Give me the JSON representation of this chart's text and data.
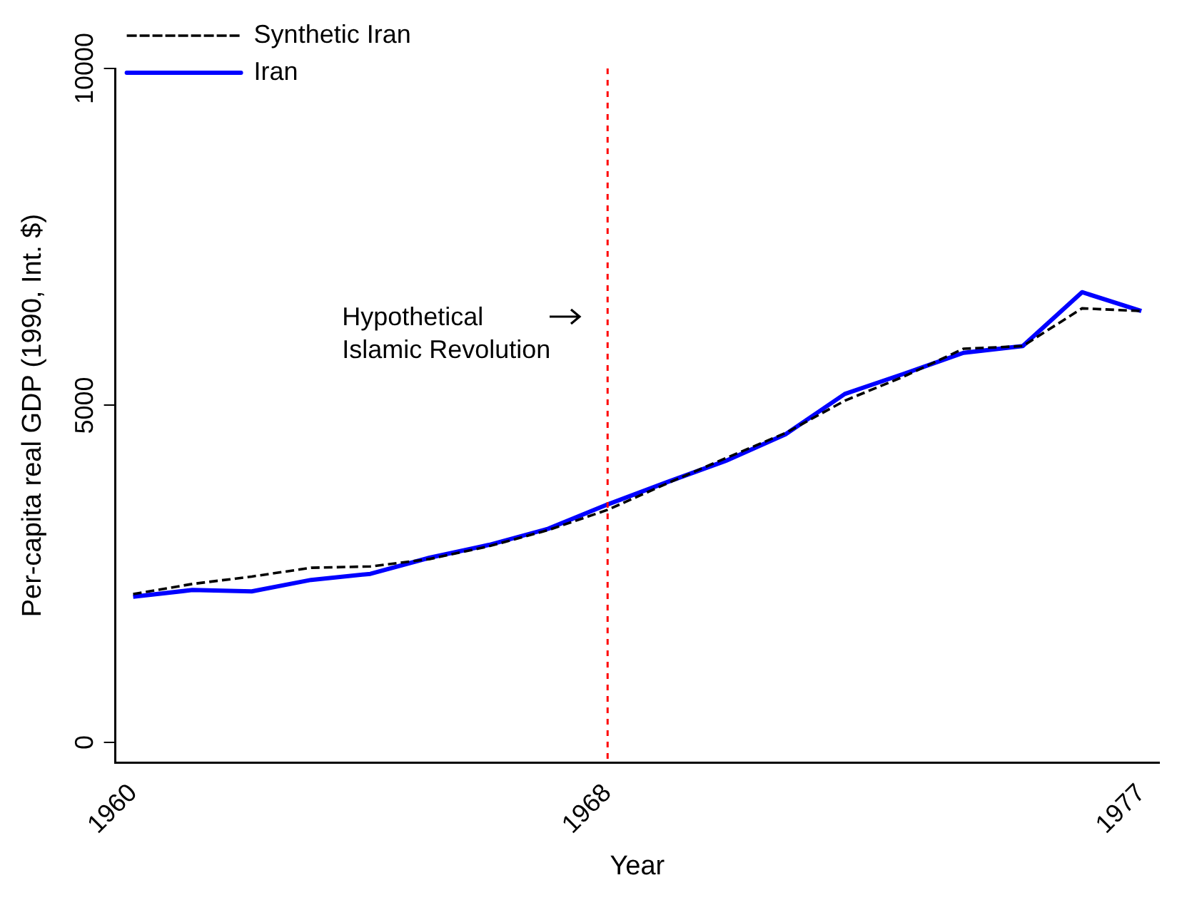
{
  "chart_data": {
    "type": "line",
    "xlabel": "Year",
    "ylabel": "Per-capita real GDP (1990, Int. $)",
    "x": [
      1960,
      1961,
      1962,
      1963,
      1964,
      1965,
      1966,
      1967,
      1968,
      1969,
      1970,
      1971,
      1972,
      1973,
      1974,
      1975,
      1976,
      1977
    ],
    "series": [
      {
        "name": "Iran",
        "color": "#0000ff",
        "line_style": "solid",
        "values": [
          2160,
          2260,
          2240,
          2410,
          2500,
          2740,
          2930,
          3170,
          3530,
          3860,
          4180,
          4570,
          5170,
          5470,
          5780,
          5880,
          6680,
          6400
        ]
      },
      {
        "name": "Synthetic Iran",
        "color": "#000000",
        "line_style": "dashed",
        "values": [
          2200,
          2350,
          2460,
          2590,
          2610,
          2720,
          2910,
          3150,
          3450,
          3840,
          4220,
          4590,
          5070,
          5430,
          5840,
          5880,
          6440,
          6400
        ]
      }
    ],
    "xlim": [
      1959.7,
      1977.3
    ],
    "xticks": [
      1960,
      1968,
      1977
    ],
    "ylim": [
      -300,
      10000
    ],
    "yticks": [
      0,
      5000,
      10000
    ],
    "grid": false,
    "legend": "top left",
    "marker": "none",
    "ref_lines": [
      {
        "axis": "x",
        "value": 1968,
        "label": "Hypothetical\nIslamic Revolution",
        "color": "#ff0000",
        "line_style": "dotted"
      }
    ]
  }
}
